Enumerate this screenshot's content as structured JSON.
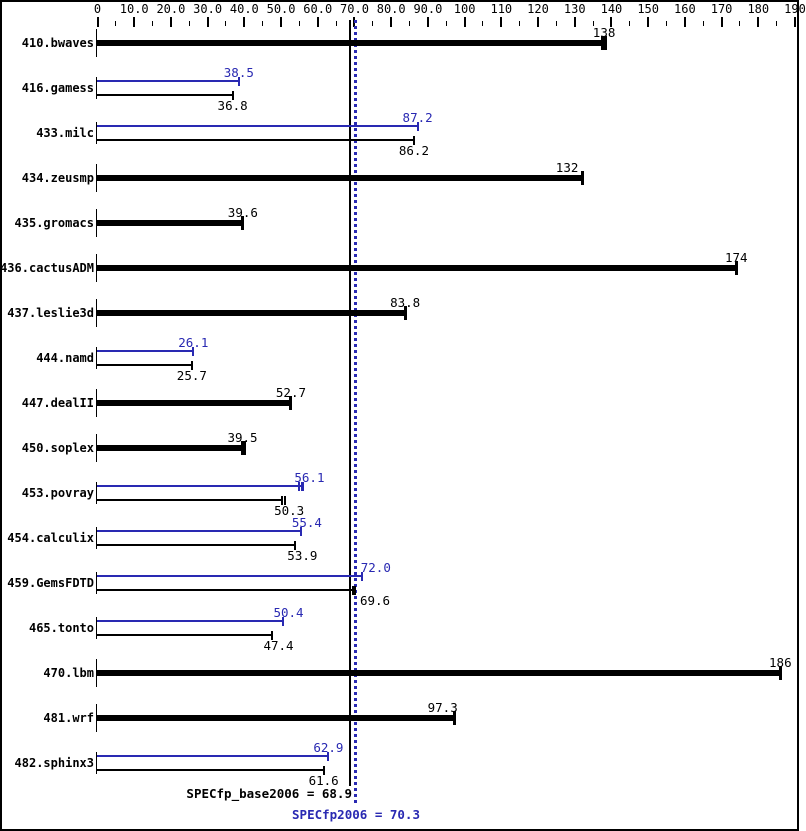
{
  "chart_data": {
    "type": "bar",
    "orientation": "horizontal",
    "title": "",
    "xlabel": "",
    "ylabel": "",
    "grid": false,
    "legend_position": "none",
    "axis": {
      "min": 0,
      "max": 190,
      "major_step": 10,
      "minor_step": 5,
      "tick_labels": [
        "0",
        "10.0",
        "20.0",
        "30.0",
        "40.0",
        "50.0",
        "60.0",
        "70.0",
        "80.0",
        "90.0",
        "100",
        "110",
        "120",
        "130",
        "140",
        "150",
        "160",
        "170",
        "180",
        "190"
      ]
    },
    "series_colors": {
      "base": "#000000",
      "peak": "#2929b2"
    },
    "series_names": {
      "base": "SPECfp_base2006",
      "peak": "SPECfp2006"
    },
    "benchmarks": [
      {
        "name": "410.bwaves",
        "base": {
          "value": 138,
          "label": "138",
          "ticks": [
            137.5,
            138.5
          ]
        },
        "peak": null
      },
      {
        "name": "416.gamess",
        "base": {
          "value": 36.8,
          "label": "36.8"
        },
        "peak": {
          "value": 38.5,
          "label": "38.5"
        }
      },
      {
        "name": "433.milc",
        "base": {
          "value": 86.2,
          "label": "86.2"
        },
        "peak": {
          "value": 87.2,
          "label": "87.2"
        }
      },
      {
        "name": "434.zeusmp",
        "base": {
          "value": 132,
          "label": "132",
          "label_dx": -15
        },
        "peak": null
      },
      {
        "name": "435.gromacs",
        "base": {
          "value": 39.6,
          "label": "39.6"
        },
        "peak": null
      },
      {
        "name": "436.cactusADM",
        "base": {
          "value": 174,
          "label": "174"
        },
        "peak": null
      },
      {
        "name": "437.leslie3d",
        "base": {
          "value": 83.8,
          "label": "83.8"
        },
        "peak": null
      },
      {
        "name": "444.namd",
        "base": {
          "value": 25.7,
          "label": "25.7"
        },
        "peak": {
          "value": 26.1,
          "label": "26.1"
        }
      },
      {
        "name": "447.dealII",
        "base": {
          "value": 52.7,
          "label": "52.7"
        },
        "peak": null
      },
      {
        "name": "450.soplex",
        "base": {
          "value": 39.5,
          "label": "39.5",
          "ticks": [
            39.5,
            40.1
          ]
        },
        "peak": null
      },
      {
        "name": "453.povray",
        "base": {
          "value": 50.3,
          "label": "50.3",
          "ticks": [
            50.3,
            51.2
          ],
          "label_dx": 7
        },
        "peak": {
          "value": 56.1,
          "label": "56.1",
          "ticks": [
            54.9,
            55.6,
            56.1
          ],
          "label_dx": 6
        }
      },
      {
        "name": "454.calculix",
        "base": {
          "value": 53.9,
          "label": "53.9",
          "label_dx": 7
        },
        "peak": {
          "value": 55.4,
          "label": "55.4",
          "label_dx": 6
        }
      },
      {
        "name": "459.GemsFDTD",
        "base": {
          "value": 69.6,
          "label": "69.6",
          "ticks": [
            69.6,
            70.2
          ],
          "label_dx": 22
        },
        "peak": {
          "value": 72.0,
          "label": "72.0",
          "label_dx": 14
        }
      },
      {
        "name": "465.tonto",
        "base": {
          "value": 47.4,
          "label": "47.4",
          "label_dx": 7
        },
        "peak": {
          "value": 50.4,
          "label": "50.4",
          "label_dx": 6
        }
      },
      {
        "name": "470.lbm",
        "base": {
          "value": 186,
          "label": "186"
        },
        "peak": null
      },
      {
        "name": "481.wrf",
        "base": {
          "value": 97.3,
          "label": "97.3",
          "label_dx": -12
        },
        "peak": null
      },
      {
        "name": "482.sphinx3",
        "base": {
          "value": 61.6,
          "label": "61.6"
        },
        "peak": {
          "value": 62.9,
          "label": "62.9"
        }
      }
    ],
    "reference_lines": [
      {
        "series": "base",
        "value": 68.9,
        "color": "#000000",
        "style": "solid"
      },
      {
        "series": "peak",
        "value": 70.3,
        "color": "#2929b2",
        "style": "dotted"
      }
    ],
    "summary": {
      "base_text": "SPECfp_base2006 = 68.9",
      "peak_text": "SPECfp2006 = 70.3",
      "base_value": 68.9,
      "peak_value": 70.3
    }
  }
}
